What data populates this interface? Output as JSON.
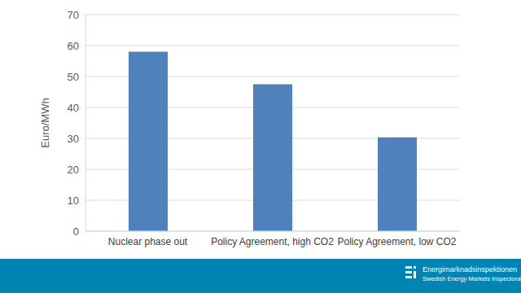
{
  "chart_data": {
    "type": "bar",
    "categories": [
      "Nuclear phase out",
      "Policy Agreement, high CO2",
      "Policy Agreement, low CO2"
    ],
    "values": [
      58,
      47.5,
      30.3
    ],
    "color": "#4f81bd",
    "y_label": "Euro/MWh",
    "ylim": [
      0,
      70
    ],
    "yticks": [
      0,
      10,
      20,
      30,
      40,
      50,
      60,
      70
    ],
    "grid": true,
    "data_labels": false,
    "annotations": [
      "Energimarknadsinspektionen",
      "Swedish Energy Markets Inspectorate"
    ]
  }
}
